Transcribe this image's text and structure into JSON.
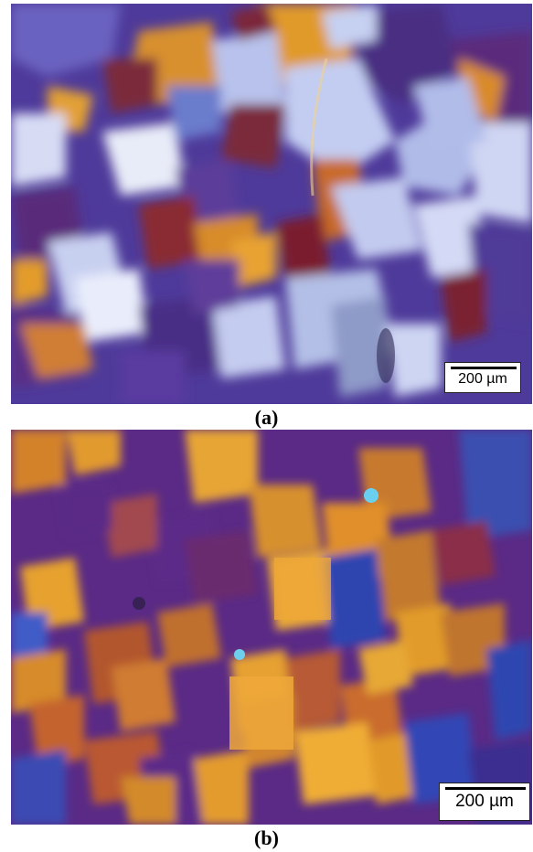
{
  "figure": {
    "panel_a": {
      "caption": "(a)",
      "scale_label": "200 µm"
    },
    "panel_b": {
      "caption": "(b)",
      "scale_label": "200 µm"
    }
  },
  "colors": {
    "background": "#ffffff",
    "grain_purple": "#5a2a8a",
    "grain_blue": "#3c4fb0",
    "grain_lightblue": "#b9c3ef",
    "grain_orange": "#e59a2c",
    "grain_red": "#8a2a36"
  }
}
